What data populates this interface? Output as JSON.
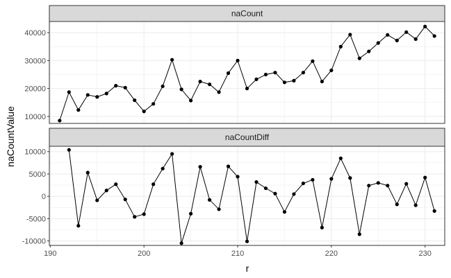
{
  "chart_data": {
    "type": "line",
    "xlabel": "r",
    "ylabel": "naCountValue",
    "x_ticks": [
      190,
      200,
      210,
      220,
      230
    ],
    "xlim": [
      189.9,
      232.1
    ],
    "grid": true,
    "colors": {
      "line": "#000000",
      "point": "#000000",
      "strip": "#d9d9d9",
      "grid": "#ebebeb",
      "border": "#333333"
    },
    "panels": [
      {
        "name": "naCount",
        "ylim": [
          7500,
          44000
        ],
        "y_ticks": [
          10000,
          20000,
          30000,
          40000
        ],
        "y_tick_labels": [
          "10000",
          "20000",
          "30000",
          "40000"
        ],
        "x": [
          191,
          192,
          193,
          194,
          195,
          196,
          197,
          198,
          199,
          200,
          201,
          202,
          203,
          204,
          205,
          206,
          207,
          208,
          209,
          210,
          211,
          212,
          213,
          214,
          215,
          216,
          217,
          218,
          219,
          220,
          221,
          222,
          223,
          224,
          225,
          226,
          227,
          228,
          229,
          230,
          231
        ],
        "values": [
          8500,
          18700,
          12300,
          17700,
          17000,
          18200,
          21000,
          20300,
          15800,
          11800,
          14500,
          20800,
          30300,
          19700,
          15700,
          22500,
          21500,
          18700,
          25500,
          30000,
          20000,
          23300,
          25000,
          25700,
          22200,
          22800,
          25700,
          29800,
          22500,
          26500,
          35000,
          39300,
          30800,
          33300,
          36300,
          39200,
          37200,
          40200,
          37700,
          42200,
          38800
        ]
      },
      {
        "name": "naCountDiff",
        "ylim": [
          -11000,
          11200
        ],
        "y_ticks": [
          -10000,
          -5000,
          0,
          5000,
          10000
        ],
        "y_tick_labels": [
          "-10000",
          "-5000",
          "0",
          "5000",
          "10000"
        ],
        "x": [
          192,
          193,
          194,
          195,
          196,
          197,
          198,
          199,
          200,
          201,
          202,
          203,
          204,
          205,
          206,
          207,
          208,
          209,
          210,
          211,
          212,
          213,
          214,
          215,
          216,
          217,
          218,
          219,
          220,
          221,
          222,
          223,
          224,
          225,
          226,
          227,
          228,
          229,
          230,
          231
        ],
        "values": [
          10400,
          -6600,
          5300,
          -900,
          1300,
          2700,
          -700,
          -4600,
          -4000,
          2700,
          6200,
          9500,
          -10500,
          -3900,
          6600,
          -800,
          -2900,
          6700,
          4400,
          -10100,
          3200,
          1800,
          600,
          -3500,
          500,
          2900,
          3700,
          -7000,
          3900,
          8500,
          4100,
          -8500,
          2400,
          3000,
          2400,
          -1800,
          2800,
          -2000,
          4200,
          -3300
        ]
      }
    ]
  }
}
